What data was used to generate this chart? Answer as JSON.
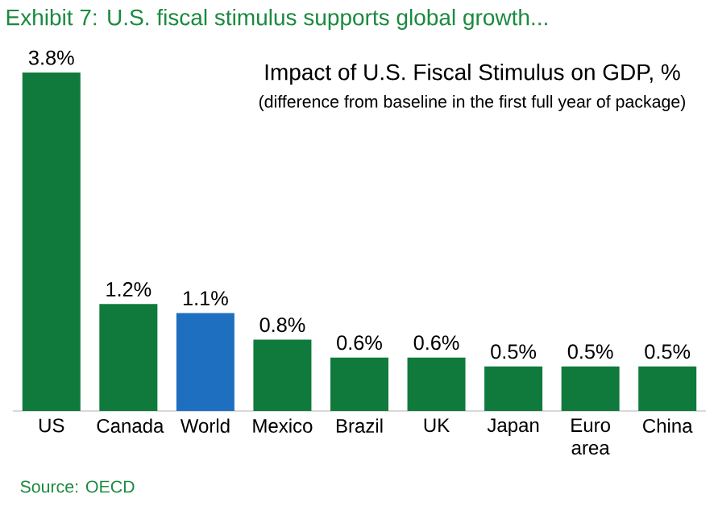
{
  "chart_data": {
    "type": "bar",
    "title": "Exhibit 7: U.S. fiscal stimulus supports global growth...",
    "subtitle": "Impact of U.S. Fiscal Stimulus on GDP, %",
    "annotations": [
      "(difference from baseline in the first full year of package)",
      "Source: OECD"
    ],
    "categories": [
      "US",
      "Canada",
      "World",
      "Mexico",
      "Brazil",
      "UK",
      "Japan",
      "Euro area",
      "China"
    ],
    "values": [
      3.8,
      1.2,
      1.1,
      0.8,
      0.6,
      0.6,
      0.5,
      0.5,
      0.5
    ],
    "colors": [
      "#0f7a3b",
      "#0f7a3b",
      "#1f6fc1",
      "#0f7a3b",
      "#0f7a3b",
      "#0f7a3b",
      "#0f7a3b",
      "#0f7a3b",
      "#0f7a3b"
    ],
    "value_labels": [
      "3.8%",
      "1.2%",
      "1.1%",
      "0.8%",
      "0.6%",
      "0.6%",
      "0.5%",
      "0.5%",
      "0.5%"
    ]
  }
}
